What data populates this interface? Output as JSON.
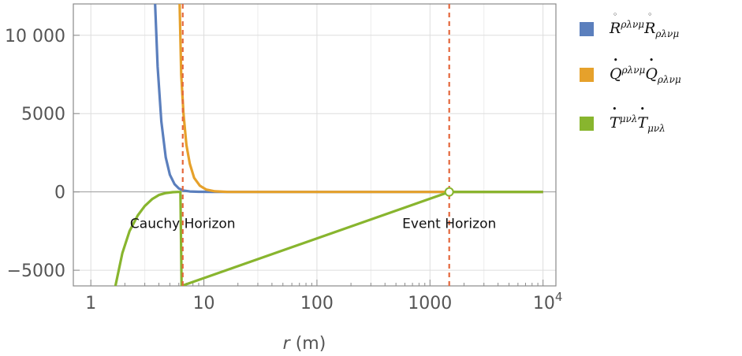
{
  "chart_data": {
    "type": "line",
    "x_scale": "log",
    "xlim": [
      0.7,
      13000
    ],
    "ylim": [
      -6000,
      12000
    ],
    "x_ticks": [
      1,
      10,
      100,
      1000,
      10000
    ],
    "x_tick_labels": [
      "1",
      "10",
      "100",
      "1000",
      "10^4"
    ],
    "y_ticks": [
      -5000,
      0,
      5000,
      10000
    ],
    "y_tick_labels": [
      "−5000",
      "0",
      "5000",
      "10 000"
    ],
    "xlabel_symbol": "r",
    "xlabel_unit": "(m)",
    "grid": true,
    "legend_position": "right",
    "series": [
      {
        "name": "Rͦ^{ρλνμ} Rͦ_{ρλνμ}",
        "color": "#5b7fbd",
        "points": [
          [
            3.7,
            12000
          ],
          [
            3.9,
            8000
          ],
          [
            4.2,
            4500
          ],
          [
            4.6,
            2200
          ],
          [
            5.0,
            1100
          ],
          [
            5.5,
            500
          ],
          [
            6.0,
            220
          ],
          [
            6.6,
            90
          ],
          [
            7.5,
            30
          ],
          [
            9,
            8
          ],
          [
            12,
            0
          ],
          [
            10000,
            0
          ]
        ]
      },
      {
        "name": "Q̇^{ρλνμ} Q̇_{ρλνμ}",
        "color": "#e6a12b",
        "points": [
          [
            6.1,
            12000
          ],
          [
            6.3,
            7500
          ],
          [
            6.6,
            5000
          ],
          [
            7.0,
            3000
          ],
          [
            7.5,
            1800
          ],
          [
            8.2,
            900
          ],
          [
            9.2,
            400
          ],
          [
            10.5,
            150
          ],
          [
            12.5,
            40
          ],
          [
            16,
            5
          ],
          [
            20,
            0
          ],
          [
            10000,
            0
          ]
        ]
      },
      {
        "name": "Ṫ^{μνλ} Ṫ_{μνλ}",
        "color": "#88b52e",
        "points": [
          [
            1.65,
            -6000
          ],
          [
            1.9,
            -3900
          ],
          [
            2.2,
            -2500
          ],
          [
            2.6,
            -1500
          ],
          [
            3.0,
            -900
          ],
          [
            3.5,
            -450
          ],
          [
            4.0,
            -200
          ],
          [
            4.6,
            -70
          ],
          [
            5.3,
            -15
          ],
          [
            5.9,
            -2
          ],
          [
            6.2,
            0
          ],
          [
            6.35,
            -6000
          ],
          [
            1480,
            0
          ],
          [
            10000,
            0
          ]
        ]
      }
    ],
    "vertical_lines": [
      {
        "x": 6.5,
        "color": "#e4673c",
        "style": "dashed"
      },
      {
        "x": 1480,
        "color": "#e4673c",
        "style": "dashed"
      }
    ],
    "annotations": [
      {
        "text": "Cauchy Horizon",
        "x": 6.5,
        "y": -2000
      },
      {
        "text": "Event Horizon",
        "x": 1480,
        "y": -2000
      }
    ],
    "markers": [
      {
        "x": 1480,
        "y": 0,
        "color": "#88b52e",
        "shape": "open-circle"
      }
    ]
  },
  "legend": [
    {
      "base": "R",
      "accent": "◦",
      "sup": "ρλνμ",
      "sub": "ρλνμ",
      "color": "#5b7fbd"
    },
    {
      "base": "Q",
      "accent": "•",
      "sup": "ρλνμ",
      "sub": "ρλνμ",
      "color": "#e6a12b"
    },
    {
      "base": "T",
      "accent": "•",
      "sup": "μνλ",
      "sub": "μνλ",
      "color": "#88b52e"
    }
  ]
}
